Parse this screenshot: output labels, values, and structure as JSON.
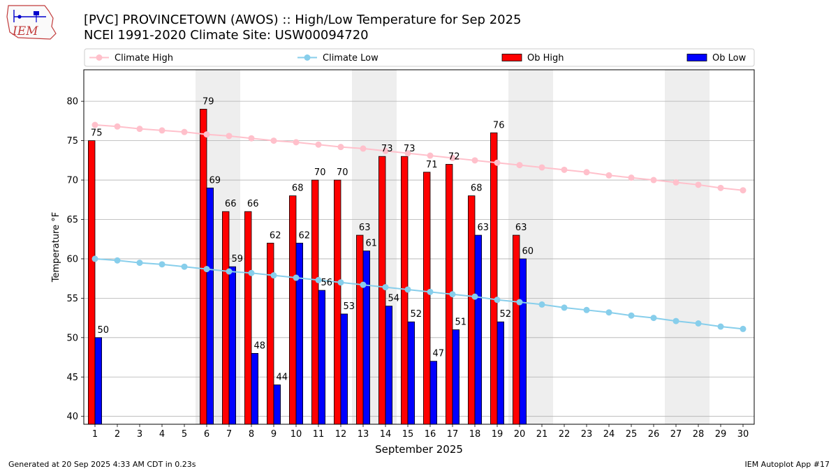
{
  "header": {
    "title_line1": "[PVC] PROVINCETOWN (AWOS) :: High/Low Temperature for Sep 2025",
    "title_line2": "NCEI 1991-2020 Climate Site: USW00094720",
    "logo_text": "IEM"
  },
  "footer": {
    "generated": "Generated at 20 Sep 2025 4:33 AM CDT in 0.23s",
    "app": "IEM Autoplot App #17"
  },
  "colors": {
    "climate_high": "#ffc0cb",
    "climate_low": "#87ceeb",
    "ob_high": "#ff0000",
    "ob_low": "#0000ff",
    "weekend_shade": "#eeeeee",
    "grid": "#b0b0b0"
  },
  "chart_data": {
    "type": "bar",
    "xlabel": "September 2025",
    "ylabel": "Temperature °F",
    "xlim": [
      0.5,
      30.5
    ],
    "ylim": [
      39,
      84
    ],
    "yticks": [
      40,
      45,
      50,
      55,
      60,
      65,
      70,
      75,
      80
    ],
    "grid": "horizontal",
    "legend_placement": "top, above plot",
    "x": [
      1,
      2,
      3,
      4,
      5,
      6,
      7,
      8,
      9,
      10,
      11,
      12,
      13,
      14,
      15,
      16,
      17,
      18,
      19,
      20,
      21,
      22,
      23,
      24,
      25,
      26,
      27,
      28,
      29,
      30
    ],
    "shaded_days": [
      6,
      7,
      13,
      14,
      20,
      21,
      27,
      28
    ],
    "series": [
      {
        "name": "Climate High",
        "kind": "line",
        "values": [
          77.0,
          76.8,
          76.5,
          76.3,
          76.1,
          75.8,
          75.6,
          75.3,
          75.0,
          74.8,
          74.5,
          74.2,
          74.0,
          73.7,
          73.4,
          73.1,
          72.8,
          72.5,
          72.2,
          71.9,
          71.6,
          71.3,
          71.0,
          70.6,
          70.3,
          70.0,
          69.7,
          69.4,
          69.0,
          68.7
        ]
      },
      {
        "name": "Climate Low",
        "kind": "line",
        "values": [
          60.0,
          59.8,
          59.5,
          59.3,
          59.0,
          58.7,
          58.4,
          58.2,
          57.9,
          57.6,
          57.3,
          57.0,
          56.7,
          56.4,
          56.1,
          55.8,
          55.5,
          55.2,
          54.8,
          54.5,
          54.2,
          53.8,
          53.5,
          53.2,
          52.8,
          52.5,
          52.1,
          51.8,
          51.4,
          51.1
        ]
      },
      {
        "name": "Ob High",
        "kind": "bar",
        "values": [
          75,
          null,
          null,
          null,
          null,
          79,
          66,
          66,
          62,
          68,
          70,
          70,
          63,
          73,
          73,
          71,
          72,
          68,
          76,
          63,
          null,
          null,
          null,
          null,
          null,
          null,
          null,
          null,
          null,
          null
        ]
      },
      {
        "name": "Ob Low",
        "kind": "bar",
        "values": [
          50,
          null,
          null,
          null,
          null,
          69,
          59,
          48,
          44,
          62,
          56,
          53,
          61,
          54,
          52,
          47,
          51,
          63,
          52,
          60,
          null,
          null,
          null,
          null,
          null,
          null,
          null,
          null,
          null,
          null
        ]
      }
    ]
  }
}
